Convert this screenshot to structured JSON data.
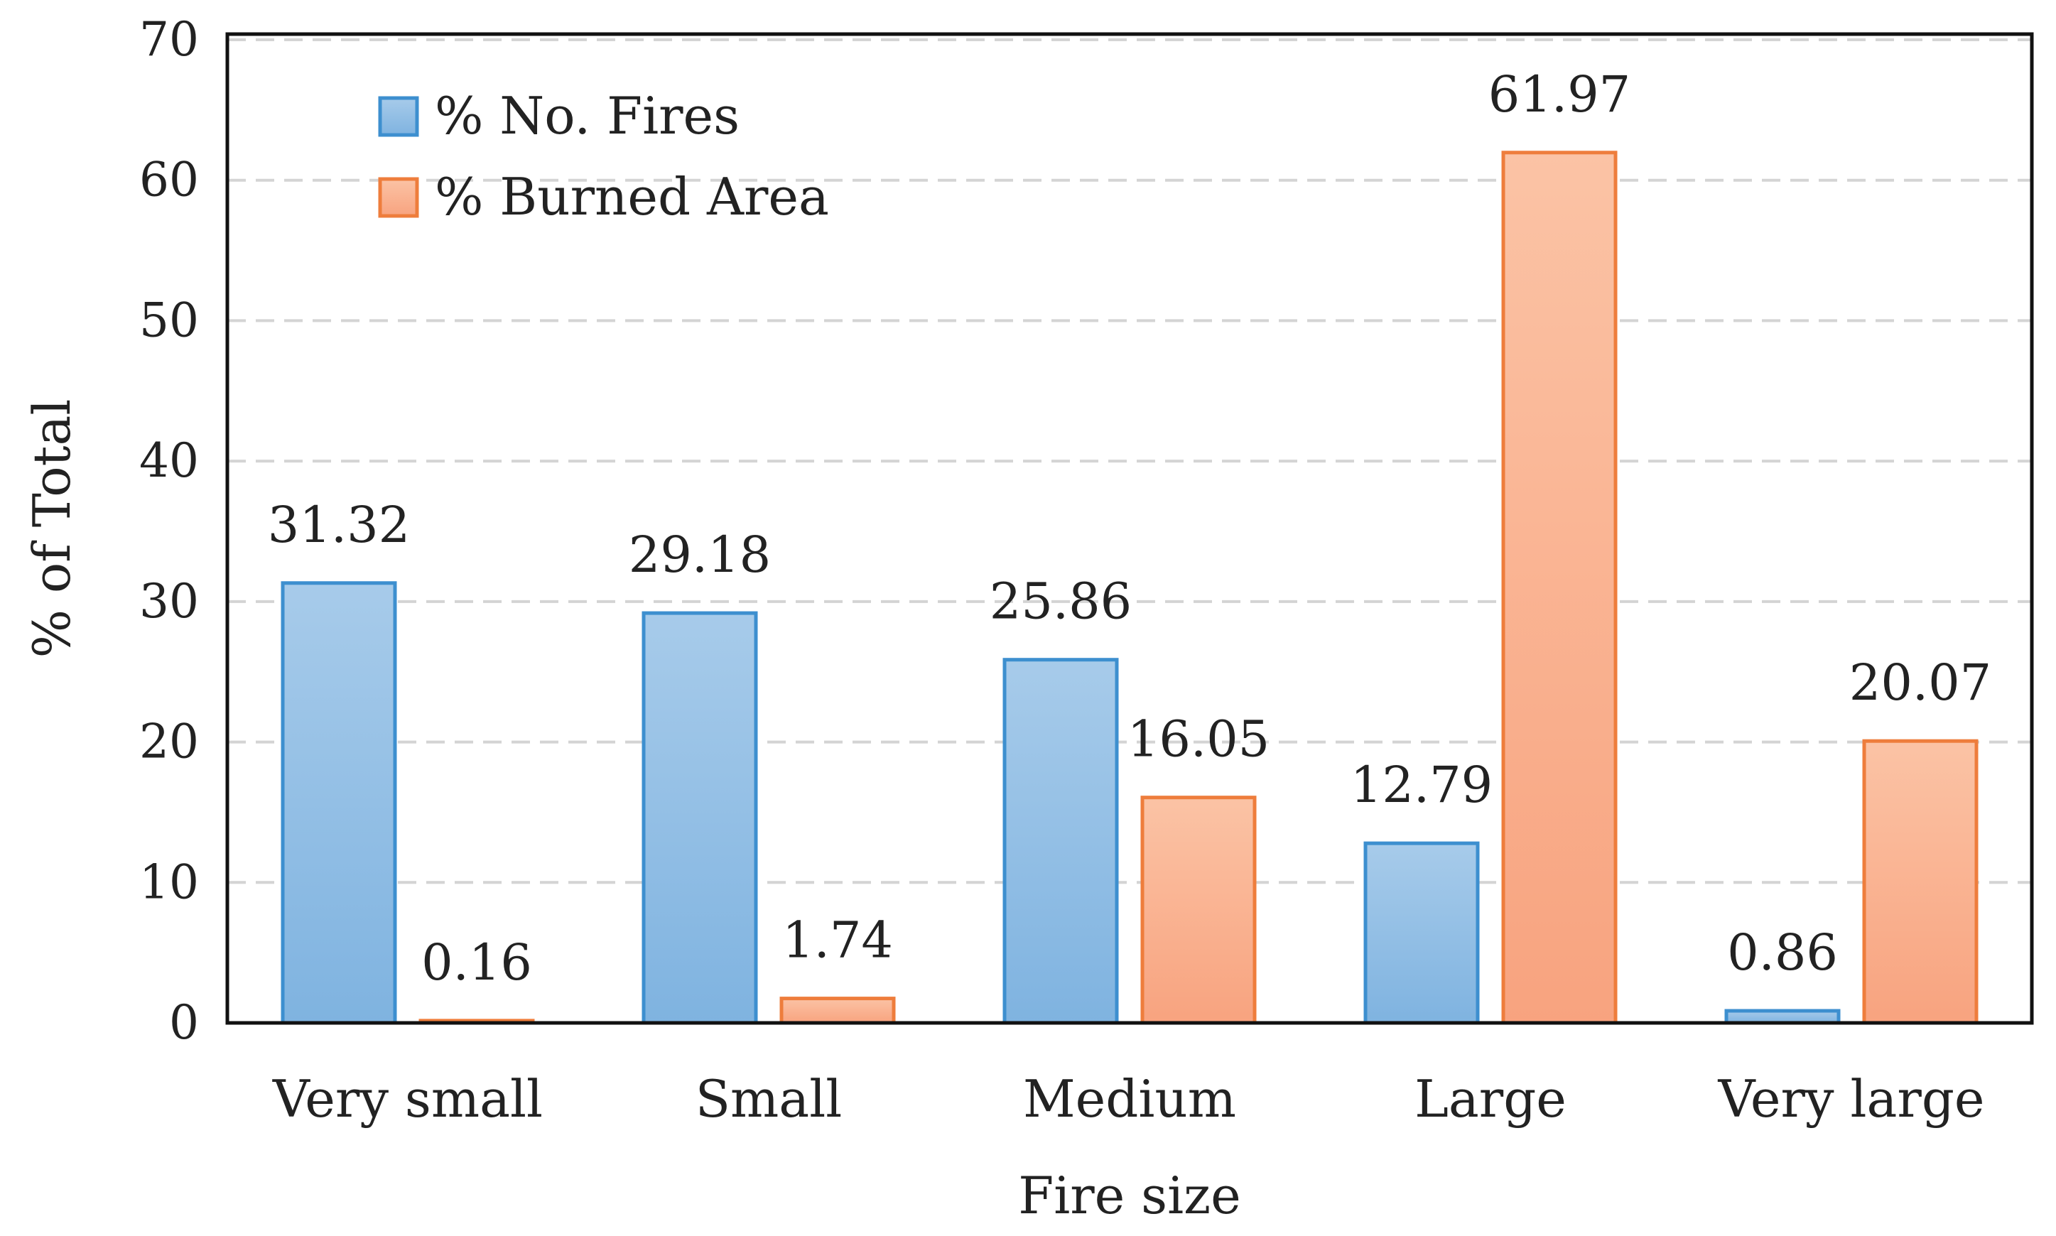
{
  "chart_data": {
    "type": "bar",
    "title": "",
    "xlabel": "Fire size",
    "ylabel": "% of Total",
    "ylim": [
      0,
      70
    ],
    "yticks": [
      0,
      10,
      20,
      30,
      40,
      50,
      60,
      70
    ],
    "grid": true,
    "legend_position": "top-left",
    "categories": [
      "Very small",
      "Small",
      "Medium",
      "Large",
      "Very large"
    ],
    "series": [
      {
        "name": "% No. Fires",
        "values": [
          31.32,
          29.18,
          25.86,
          12.79,
          0.86
        ],
        "labels": [
          "31.32",
          "29.18",
          "25.86",
          "12.79",
          "0.86"
        ],
        "fill_top": "#a7cbea",
        "fill_bottom": "#7fb3e0",
        "stroke": "#3d8fcf"
      },
      {
        "name": "% Burned Area",
        "values": [
          0.16,
          1.74,
          16.05,
          61.97,
          20.07
        ],
        "labels": [
          "0.16",
          "1.74",
          "16.05",
          "61.97",
          "20.07"
        ],
        "fill_top": "#fbc3a5",
        "fill_bottom": "#f8a37f",
        "stroke": "#ee7d3c"
      }
    ]
  }
}
